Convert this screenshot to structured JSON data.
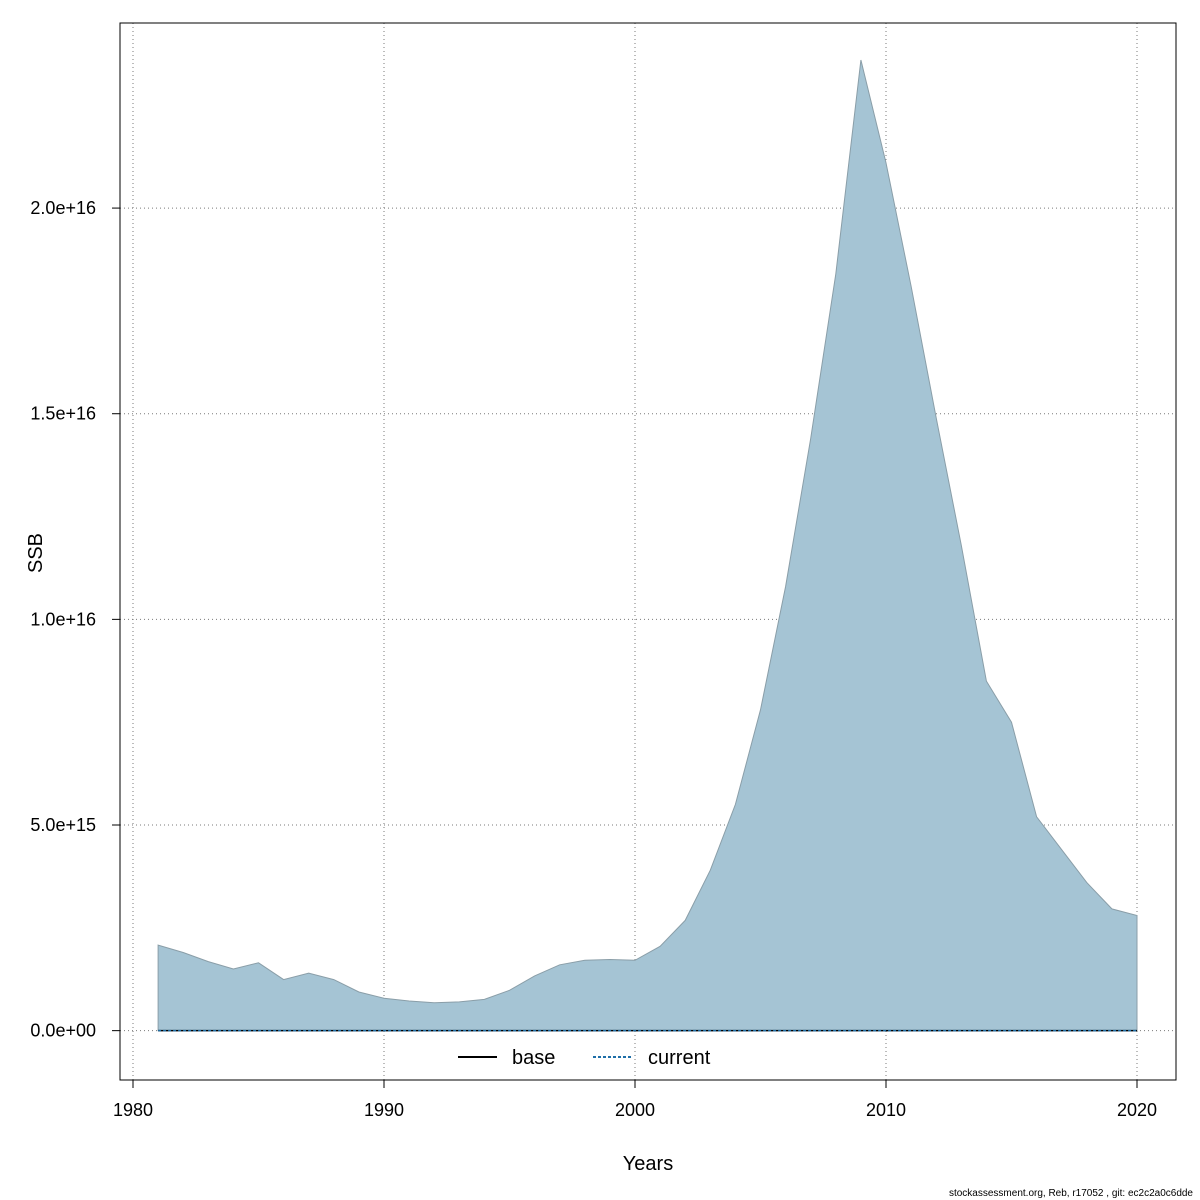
{
  "chart_data": {
    "type": "area",
    "title": "",
    "xlabel": "Years",
    "ylabel": "SSB",
    "xlim": [
      1980,
      2020
    ],
    "ylim": [
      -1200000000000000.0,
      2.45e+16
    ],
    "x_ticks": [
      1980,
      1990,
      2000,
      2010,
      2020
    ],
    "x_tick_labels": [
      "1980",
      "1990",
      "2000",
      "2010",
      "2020"
    ],
    "y_ticks": [
      0,
      5000000000000000.0,
      1e+16,
      1.5e+16,
      2e+16
    ],
    "y_tick_labels": [
      "0.0e+00",
      "5.0e+15",
      "1.0e+16",
      "1.5e+16",
      "2.0e+16"
    ],
    "grid": true,
    "legend_position": "bottom-center",
    "band": {
      "fill": "#a5c4d4",
      "stroke": "#8a9ea8",
      "x": [
        1981,
        1982,
        1983,
        1984,
        1985,
        1986,
        1987,
        1988,
        1989,
        1990,
        1991,
        1992,
        1993,
        1994,
        1995,
        1996,
        1997,
        1998,
        1999,
        2000,
        2001,
        2002,
        2003,
        2004,
        2005,
        2006,
        2007,
        2008,
        2009,
        2010,
        2011,
        2012,
        2013,
        2014,
        2015,
        2016,
        2017,
        2018,
        2019,
        2020
      ],
      "upper": [
        2080000000000000.0,
        1900000000000000.0,
        1680000000000000.0,
        1500000000000000.0,
        1650000000000000.0,
        1240000000000000.0,
        1400000000000000.0,
        1240000000000000.0,
        940000000000000.0,
        790000000000000.0,
        720000000000000.0,
        680000000000000.0,
        700000000000000.0,
        760000000000000.0,
        980000000000000.0,
        1330000000000000.0,
        1600000000000000.0,
        1710000000000000.0,
        1730000000000000.0,
        1710000000000000.0,
        2050000000000000.0,
        2680000000000000.0,
        3900000000000000.0,
        5500000000000000.0,
        7800000000000000.0,
        1.08e+16,
        1.44e+16,
        1.84e+16,
        2.36e+16,
        2.11e+16,
        1.81e+16,
        1.49e+16,
        1.18e+16,
        8500000000000000.0,
        7500000000000000.0,
        5200000000000000.0,
        4400000000000000.0,
        3600000000000000.0,
        2960000000000000.0,
        2800000000000000.0
      ],
      "lower": [
        0,
        0,
        0,
        0,
        0,
        0,
        0,
        0,
        0,
        0,
        0,
        0,
        0,
        0,
        0,
        0,
        0,
        0,
        0,
        0,
        0,
        0,
        0,
        0,
        0,
        0,
        0,
        0,
        0,
        0,
        0,
        0,
        0,
        0,
        0,
        0,
        0,
        0,
        0,
        0
      ]
    },
    "series": [
      {
        "name": "base",
        "color": "#000000",
        "dash": "solid",
        "x": [
          1981,
          2020
        ],
        "values": [
          0,
          0
        ]
      },
      {
        "name": "current",
        "color": "#1f6fa8",
        "dash": "dashed",
        "x": [
          1981,
          2020
        ],
        "values": [
          0,
          0
        ]
      }
    ]
  },
  "footer": "stockassessment.org, Reb, r17052 , git: ec2c2a0c6dde"
}
